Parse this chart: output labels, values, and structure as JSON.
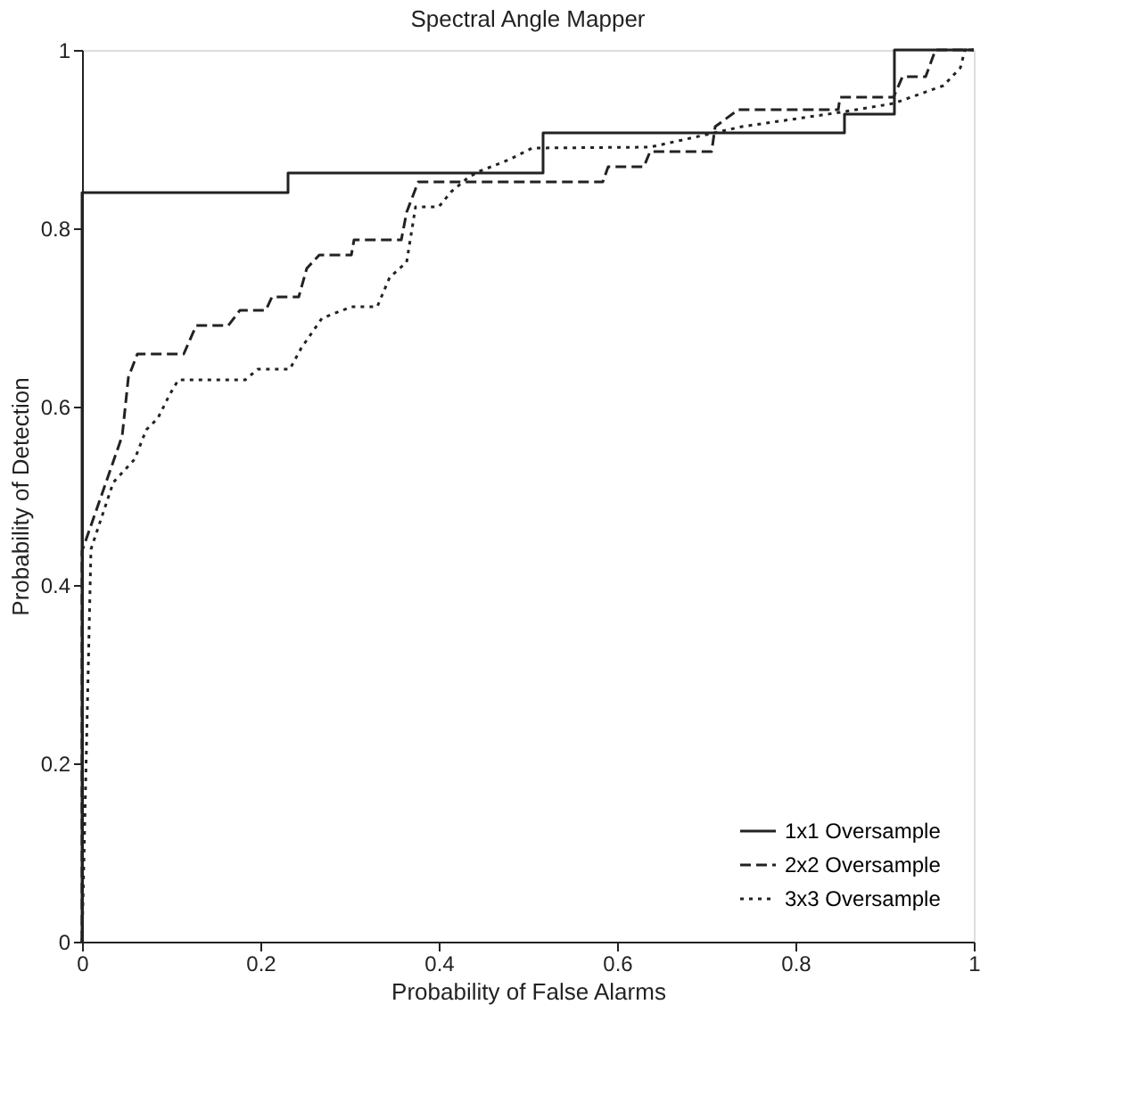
{
  "chart_data": {
    "type": "line",
    "title": "Spectral Angle Mapper",
    "xlabel": "Probability of False Alarms",
    "ylabel": "Probability of Detection",
    "xlim": [
      0,
      1
    ],
    "ylim": [
      0,
      1
    ],
    "xticks": [
      0,
      0.2,
      0.4,
      0.6,
      0.8,
      1
    ],
    "yticks": [
      0,
      0.2,
      0.4,
      0.6,
      0.8,
      1
    ],
    "grid": false,
    "legend": "bottom right",
    "marker": "none",
    "series": [
      {
        "name": "1x1 Oversample",
        "type": "step",
        "line_style": "solid",
        "color": "#222222",
        "x": [
          0,
          0,
          0.231,
          0.517,
          0.855,
          0.911,
          1
        ],
        "values": [
          0,
          0.84,
          0.862,
          0.907,
          0.928,
          1,
          1
        ]
      },
      {
        "name": "2x2 Oversample",
        "line_style": "dashed",
        "color": "#222222",
        "x": [
          0,
          0,
          0.045,
          0.052,
          0.062,
          0.114,
          0.128,
          0.164,
          0.177,
          0.206,
          0.213,
          0.243,
          0.252,
          0.266,
          0.302,
          0.305,
          0.358,
          0.364,
          0.377,
          0.584,
          0.59,
          0.63,
          0.637,
          0.706,
          0.71,
          0.736,
          0.848,
          0.85,
          0.91,
          0.92,
          0.946,
          0.957,
          1
        ],
        "values": [
          0,
          0.438,
          0.567,
          0.633,
          0.659,
          0.659,
          0.691,
          0.691,
          0.708,
          0.708,
          0.723,
          0.723,
          0.755,
          0.77,
          0.77,
          0.787,
          0.787,
          0.818,
          0.852,
          0.852,
          0.869,
          0.869,
          0.886,
          0.886,
          0.914,
          0.933,
          0.933,
          0.947,
          0.947,
          0.97,
          0.97,
          1,
          1
        ]
      },
      {
        "name": "3x3 Oversample",
        "line_style": "dotted",
        "color": "#222222",
        "x": [
          0,
          0.01,
          0.035,
          0.059,
          0.072,
          0.085,
          0.098,
          0.108,
          0.183,
          0.197,
          0.233,
          0.246,
          0.269,
          0.302,
          0.331,
          0.345,
          0.364,
          0.374,
          0.4,
          0.414,
          0.433,
          0.446,
          0.479,
          0.505,
          0.637,
          0.7,
          0.74,
          0.85,
          0.91,
          0.966,
          0.985,
          0.99,
          1
        ],
        "values": [
          0,
          0.44,
          0.515,
          0.541,
          0.574,
          0.587,
          0.613,
          0.63,
          0.63,
          0.642,
          0.642,
          0.666,
          0.699,
          0.712,
          0.712,
          0.745,
          0.762,
          0.824,
          0.824,
          0.841,
          0.857,
          0.864,
          0.877,
          0.89,
          0.891,
          0.905,
          0.914,
          0.93,
          0.94,
          0.96,
          0.98,
          1,
          1
        ]
      }
    ]
  }
}
